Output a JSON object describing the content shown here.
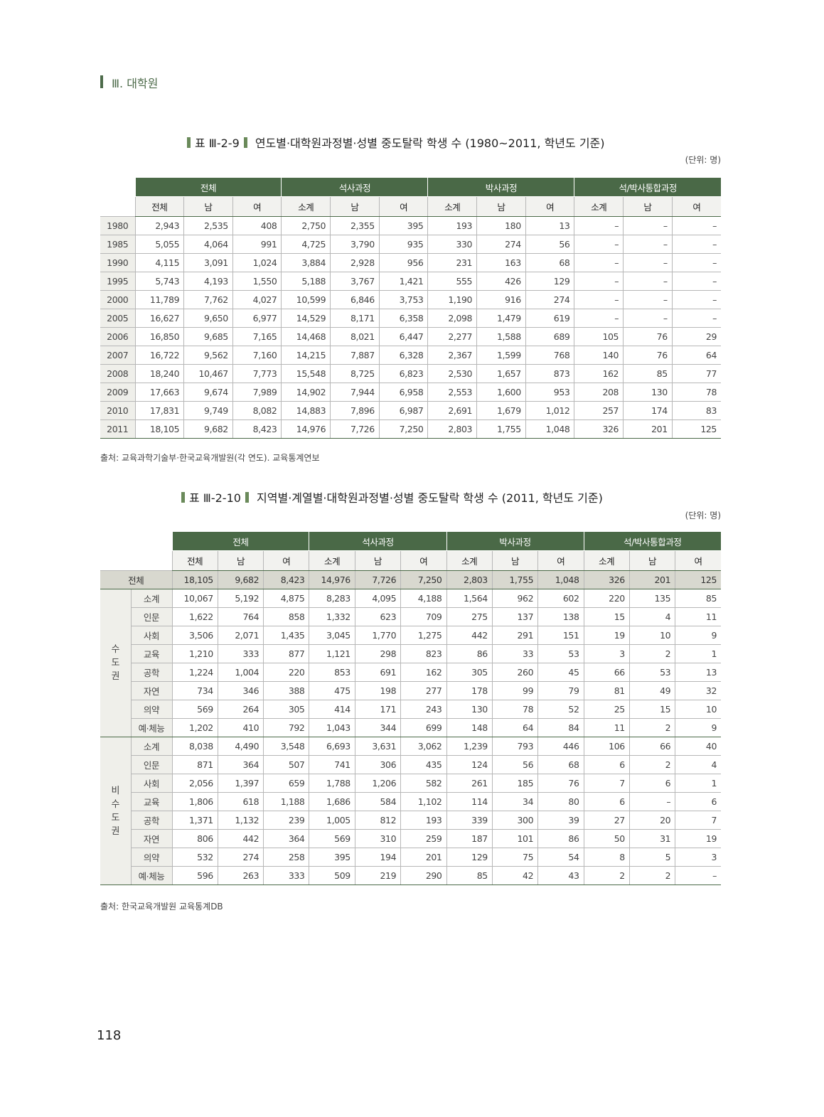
{
  "header": {
    "section": "Ⅲ. 대학원"
  },
  "table1": {
    "label": "표 Ⅲ-2-9",
    "title": "연도별·대학원과정별·성별 중도탈락 학생 수 (1980~2011, 학년도 기준)",
    "unit": "(단위: 명)",
    "groups": [
      "전체",
      "석사과정",
      "박사과정",
      "석/박사통합과정"
    ],
    "subheaders": [
      "전체",
      "남",
      "여",
      "소계",
      "남",
      "여",
      "소계",
      "남",
      "여",
      "소계",
      "남",
      "여"
    ],
    "rows": [
      {
        "year": "1980",
        "values": [
          "2,943",
          "2,535",
          "408",
          "2,750",
          "2,355",
          "395",
          "193",
          "180",
          "13",
          "–",
          "–",
          "–"
        ]
      },
      {
        "year": "1985",
        "values": [
          "5,055",
          "4,064",
          "991",
          "4,725",
          "3,790",
          "935",
          "330",
          "274",
          "56",
          "–",
          "–",
          "–"
        ]
      },
      {
        "year": "1990",
        "values": [
          "4,115",
          "3,091",
          "1,024",
          "3,884",
          "2,928",
          "956",
          "231",
          "163",
          "68",
          "–",
          "–",
          "–"
        ]
      },
      {
        "year": "1995",
        "values": [
          "5,743",
          "4,193",
          "1,550",
          "5,188",
          "3,767",
          "1,421",
          "555",
          "426",
          "129",
          "–",
          "–",
          "–"
        ]
      },
      {
        "year": "2000",
        "values": [
          "11,789",
          "7,762",
          "4,027",
          "10,599",
          "6,846",
          "3,753",
          "1,190",
          "916",
          "274",
          "–",
          "–",
          "–"
        ]
      },
      {
        "year": "2005",
        "values": [
          "16,627",
          "9,650",
          "6,977",
          "14,529",
          "8,171",
          "6,358",
          "2,098",
          "1,479",
          "619",
          "–",
          "–",
          "–"
        ]
      },
      {
        "year": "2006",
        "values": [
          "16,850",
          "9,685",
          "7,165",
          "14,468",
          "8,021",
          "6,447",
          "2,277",
          "1,588",
          "689",
          "105",
          "76",
          "29"
        ]
      },
      {
        "year": "2007",
        "values": [
          "16,722",
          "9,562",
          "7,160",
          "14,215",
          "7,887",
          "6,328",
          "2,367",
          "1,599",
          "768",
          "140",
          "76",
          "64"
        ]
      },
      {
        "year": "2008",
        "values": [
          "18,240",
          "10,467",
          "7,773",
          "15,548",
          "8,725",
          "6,823",
          "2,530",
          "1,657",
          "873",
          "162",
          "85",
          "77"
        ]
      },
      {
        "year": "2009",
        "values": [
          "17,663",
          "9,674",
          "7,989",
          "14,902",
          "7,944",
          "6,958",
          "2,553",
          "1,600",
          "953",
          "208",
          "130",
          "78"
        ]
      },
      {
        "year": "2010",
        "values": [
          "17,831",
          "9,749",
          "8,082",
          "14,883",
          "7,896",
          "6,987",
          "2,691",
          "1,679",
          "1,012",
          "257",
          "174",
          "83"
        ]
      },
      {
        "year": "2011",
        "values": [
          "18,105",
          "9,682",
          "8,423",
          "14,976",
          "7,726",
          "7,250",
          "2,803",
          "1,755",
          "1,048",
          "326",
          "201",
          "125"
        ]
      }
    ],
    "source": "출처: 교육과학기술부·한국교육개발원(각 연도). 교육통계연보"
  },
  "table2": {
    "label": "표 Ⅲ-2-10",
    "title": "지역별·계열별·대학원과정별·성별 중도탈락 학생 수 (2011, 학년도 기준)",
    "unit": "(단위: 명)",
    "groups": [
      "전체",
      "석사과정",
      "박사과정",
      "석/박사통합과정"
    ],
    "subheaders": [
      "전체",
      "남",
      "여",
      "소계",
      "남",
      "여",
      "소계",
      "남",
      "여",
      "소계",
      "남",
      "여"
    ],
    "total": {
      "label": "전체",
      "values": [
        "18,105",
        "9,682",
        "8,423",
        "14,976",
        "7,726",
        "7,250",
        "2,803",
        "1,755",
        "1,048",
        "326",
        "201",
        "125"
      ]
    },
    "regions": [
      {
        "name": "수도권",
        "rows": [
          {
            "field": "소계",
            "values": [
              "10,067",
              "5,192",
              "4,875",
              "8,283",
              "4,095",
              "4,188",
              "1,564",
              "962",
              "602",
              "220",
              "135",
              "85"
            ]
          },
          {
            "field": "인문",
            "values": [
              "1,622",
              "764",
              "858",
              "1,332",
              "623",
              "709",
              "275",
              "137",
              "138",
              "15",
              "4",
              "11"
            ]
          },
          {
            "field": "사회",
            "values": [
              "3,506",
              "2,071",
              "1,435",
              "3,045",
              "1,770",
              "1,275",
              "442",
              "291",
              "151",
              "19",
              "10",
              "9"
            ]
          },
          {
            "field": "교육",
            "values": [
              "1,210",
              "333",
              "877",
              "1,121",
              "298",
              "823",
              "86",
              "33",
              "53",
              "3",
              "2",
              "1"
            ]
          },
          {
            "field": "공학",
            "values": [
              "1,224",
              "1,004",
              "220",
              "853",
              "691",
              "162",
              "305",
              "260",
              "45",
              "66",
              "53",
              "13"
            ]
          },
          {
            "field": "자연",
            "values": [
              "734",
              "346",
              "388",
              "475",
              "198",
              "277",
              "178",
              "99",
              "79",
              "81",
              "49",
              "32"
            ]
          },
          {
            "field": "의약",
            "values": [
              "569",
              "264",
              "305",
              "414",
              "171",
              "243",
              "130",
              "78",
              "52",
              "25",
              "15",
              "10"
            ]
          },
          {
            "field": "예·체능",
            "values": [
              "1,202",
              "410",
              "792",
              "1,043",
              "344",
              "699",
              "148",
              "64",
              "84",
              "11",
              "2",
              "9"
            ]
          }
        ]
      },
      {
        "name": "비수도권",
        "rows": [
          {
            "field": "소계",
            "values": [
              "8,038",
              "4,490",
              "3,548",
              "6,693",
              "3,631",
              "3,062",
              "1,239",
              "793",
              "446",
              "106",
              "66",
              "40"
            ]
          },
          {
            "field": "인문",
            "values": [
              "871",
              "364",
              "507",
              "741",
              "306",
              "435",
              "124",
              "56",
              "68",
              "6",
              "2",
              "4"
            ]
          },
          {
            "field": "사회",
            "values": [
              "2,056",
              "1,397",
              "659",
              "1,788",
              "1,206",
              "582",
              "261",
              "185",
              "76",
              "7",
              "6",
              "1"
            ]
          },
          {
            "field": "교육",
            "values": [
              "1,806",
              "618",
              "1,188",
              "1,686",
              "584",
              "1,102",
              "114",
              "34",
              "80",
              "6",
              "–",
              "6"
            ]
          },
          {
            "field": "공학",
            "values": [
              "1,371",
              "1,132",
              "239",
              "1,005",
              "812",
              "193",
              "339",
              "300",
              "39",
              "27",
              "20",
              "7"
            ]
          },
          {
            "field": "자연",
            "values": [
              "806",
              "442",
              "364",
              "569",
              "310",
              "259",
              "187",
              "101",
              "86",
              "50",
              "31",
              "19"
            ]
          },
          {
            "field": "의약",
            "values": [
              "532",
              "274",
              "258",
              "395",
              "194",
              "201",
              "129",
              "75",
              "54",
              "8",
              "5",
              "3"
            ]
          },
          {
            "field": "예·체능",
            "values": [
              "596",
              "263",
              "333",
              "509",
              "219",
              "290",
              "85",
              "42",
              "43",
              "2",
              "2",
              "–"
            ]
          }
        ]
      }
    ],
    "source": "출처: 한국교육개발원 교육통계DB"
  },
  "footer": {
    "page_number": "118"
  },
  "colors": {
    "header_green": "#4a6947",
    "total_row": "#d8d8cf",
    "label_bg": "#efefea"
  }
}
